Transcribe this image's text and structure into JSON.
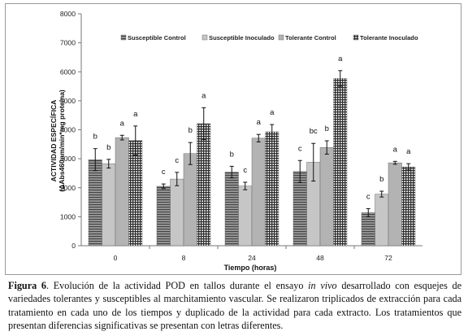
{
  "chart_data": {
    "type": "bar",
    "xlabel": "Tiempo (horas)",
    "ylabel_line1": "ACTIVIDAD ESPECÍFICA",
    "ylabel_line2": "(ΔAbs460nm/min*mg proteína)",
    "categories": [
      "0",
      "8",
      "24",
      "48",
      "72"
    ],
    "ylim": [
      0,
      8000
    ],
    "yticks": [
      0,
      1000,
      2000,
      3000,
      4000,
      5000,
      6000,
      7000,
      8000
    ],
    "legend_position": "top",
    "grid": false,
    "series": [
      {
        "name": "Susceptible Control",
        "color": "#8a8a8a",
        "pattern": "horizontal-lines",
        "values": [
          2970,
          2050,
          2540,
          2560,
          1140
        ],
        "errors": [
          380,
          80,
          200,
          380,
          140
        ],
        "letters": [
          "b",
          "c",
          "b",
          "c",
          "c"
        ]
      },
      {
        "name": "Susceptible Inoculado",
        "color": "#c6c6c6",
        "pattern": "solid",
        "values": [
          2830,
          2300,
          2060,
          2880,
          1780
        ],
        "errors": [
          150,
          230,
          130,
          650,
          100
        ],
        "letters": [
          "b",
          "c",
          "c",
          "bc",
          "b"
        ]
      },
      {
        "name": "Tolerante Control",
        "color": "#b3b3b3",
        "pattern": "solid",
        "values": [
          3730,
          3180,
          3710,
          3390,
          2860
        ],
        "errors": [
          80,
          380,
          130,
          230,
          50
        ],
        "letters": [
          "a",
          "b",
          "a",
          "b",
          "a"
        ]
      },
      {
        "name": "Tolerante Inoculado",
        "color": "#5c5c5c",
        "pattern": "grid",
        "values": [
          3630,
          4210,
          3930,
          5770,
          2720
        ],
        "errors": [
          500,
          550,
          250,
          270,
          110
        ],
        "letters": [
          "a",
          "a",
          "a",
          "a",
          "a"
        ]
      }
    ]
  },
  "caption": {
    "fig_label": "Figura 6",
    "text_before_italic": ". Evolución de la actividad POD en tallos durante el ensayo ",
    "italic": "in vivo",
    "text_after_italic": " desarrollado con esquejes de variedades tolerantes y susceptibles al marchitamiento vascular. Se realizaron triplicados de extracción para cada tratamiento en cada uno de los tiempos y duplicado de la actividad para cada extracto. Los tratamientos que presentan diferencias significativas se presentan con letras diferentes."
  }
}
